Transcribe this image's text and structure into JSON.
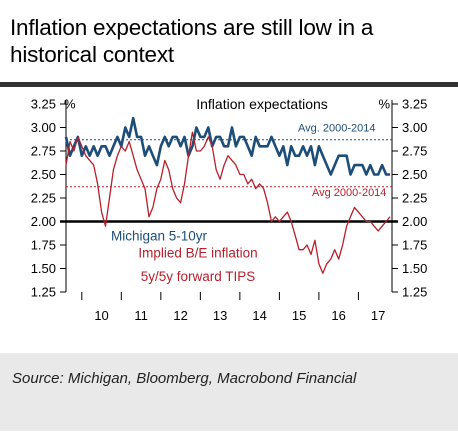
{
  "title": "Inflation expectations are still low in a historical context",
  "source": "Source: Michigan, Bloomberg, Macrobond Financial",
  "chart_data": {
    "type": "line",
    "title": "Inflation expectations",
    "ylabel_left": "%",
    "ylabel_right": "%",
    "ylim": [
      1.25,
      3.25
    ],
    "yticks": [
      "3.25",
      "3.00",
      "2.75",
      "2.50",
      "2.25",
      "2.00",
      "1.75",
      "1.50",
      "1.25"
    ],
    "xlim": [
      2009.6,
      2017.85
    ],
    "x_categories": [
      "10",
      "11",
      "12",
      "13",
      "14",
      "15",
      "16",
      "17"
    ],
    "grid": false,
    "colors": {
      "michigan": "#1d4e79",
      "tips": "#b5202b",
      "avg_michigan": "#1d4e79",
      "avg_tips": "#b5202b",
      "baseline": "#000000"
    },
    "annotations": {
      "avg_michigan": "Avg. 2000-2014",
      "avg_tips": "Avg 2000-2014",
      "michigan_label": "Michigan 5-10yr",
      "tips_label_1": "Implied B/E inflation",
      "tips_label_2": "5y/5y forward TIPS"
    },
    "reference_lines": [
      {
        "name": "Avg. 2000-2014",
        "value": 2.87
      },
      {
        "name": "Avg 2000-2014",
        "value": 2.37
      },
      {
        "name": "baseline",
        "value": 2.0
      }
    ],
    "series": [
      {
        "name": "Michigan 5-10yr",
        "x": [
          2009.6,
          2009.7,
          2009.8,
          2009.9,
          2010.0,
          2010.1,
          2010.2,
          2010.3,
          2010.4,
          2010.5,
          2010.6,
          2010.7,
          2010.8,
          2010.9,
          2011.0,
          2011.1,
          2011.2,
          2011.3,
          2011.4,
          2011.5,
          2011.6,
          2011.7,
          2011.8,
          2011.9,
          2012.0,
          2012.1,
          2012.2,
          2012.3,
          2012.4,
          2012.5,
          2012.6,
          2012.7,
          2012.8,
          2012.9,
          2013.0,
          2013.1,
          2013.2,
          2013.3,
          2013.4,
          2013.5,
          2013.6,
          2013.7,
          2013.8,
          2013.9,
          2014.0,
          2014.1,
          2014.2,
          2014.3,
          2014.4,
          2014.5,
          2014.6,
          2014.7,
          2014.8,
          2014.9,
          2015.0,
          2015.1,
          2015.2,
          2015.3,
          2015.4,
          2015.5,
          2015.6,
          2015.7,
          2015.8,
          2015.9,
          2016.0,
          2016.1,
          2016.2,
          2016.3,
          2016.4,
          2016.5,
          2016.6,
          2016.7,
          2016.8,
          2016.9,
          2017.0,
          2017.1,
          2017.2,
          2017.3,
          2017.4,
          2017.5,
          2017.6,
          2017.7,
          2017.8
        ],
        "values": [
          2.9,
          2.7,
          2.8,
          2.9,
          2.7,
          2.8,
          2.7,
          2.8,
          2.7,
          2.8,
          2.8,
          2.7,
          2.8,
          2.9,
          2.8,
          3.0,
          2.9,
          3.1,
          2.9,
          2.9,
          2.7,
          2.8,
          2.7,
          2.6,
          2.8,
          2.9,
          2.8,
          2.9,
          2.9,
          2.8,
          2.9,
          2.7,
          2.8,
          3.0,
          2.9,
          2.9,
          3.0,
          2.8,
          2.9,
          2.9,
          2.8,
          2.8,
          3.0,
          2.8,
          2.9,
          2.9,
          2.8,
          2.7,
          2.9,
          2.8,
          2.8,
          2.8,
          2.9,
          2.8,
          2.7,
          2.8,
          2.6,
          2.8,
          2.7,
          2.7,
          2.8,
          2.7,
          2.8,
          2.6,
          2.8,
          2.7,
          2.6,
          2.5,
          2.6,
          2.7,
          2.7,
          2.7,
          2.5,
          2.6,
          2.6,
          2.6,
          2.5,
          2.6,
          2.5,
          2.5,
          2.6,
          2.5,
          2.5
        ]
      },
      {
        "name": "Implied B/E inflation 5y/5y forward TIPS",
        "x": [
          2009.6,
          2009.7,
          2009.8,
          2009.9,
          2010.0,
          2010.1,
          2010.2,
          2010.3,
          2010.4,
          2010.5,
          2010.6,
          2010.7,
          2010.8,
          2010.9,
          2011.0,
          2011.1,
          2011.2,
          2011.3,
          2011.4,
          2011.5,
          2011.6,
          2011.7,
          2011.8,
          2011.9,
          2012.0,
          2012.1,
          2012.2,
          2012.3,
          2012.4,
          2012.5,
          2012.6,
          2012.7,
          2012.8,
          2012.9,
          2013.0,
          2013.1,
          2013.2,
          2013.3,
          2013.4,
          2013.5,
          2013.6,
          2013.7,
          2013.8,
          2013.9,
          2014.0,
          2014.1,
          2014.2,
          2014.3,
          2014.4,
          2014.5,
          2014.6,
          2014.7,
          2014.8,
          2014.9,
          2015.0,
          2015.1,
          2015.2,
          2015.3,
          2015.4,
          2015.5,
          2015.6,
          2015.7,
          2015.8,
          2015.9,
          2016.0,
          2016.1,
          2016.2,
          2016.3,
          2016.4,
          2016.5,
          2016.6,
          2016.7,
          2016.8,
          2016.9,
          2017.0,
          2017.1,
          2017.2,
          2017.3,
          2017.4,
          2017.5,
          2017.6,
          2017.7,
          2017.8
        ],
        "values": [
          2.6,
          2.85,
          2.75,
          2.9,
          2.8,
          2.7,
          2.65,
          2.6,
          2.4,
          2.1,
          1.95,
          2.25,
          2.55,
          2.7,
          2.8,
          2.75,
          2.85,
          2.7,
          2.55,
          2.45,
          2.35,
          2.05,
          2.15,
          2.35,
          2.45,
          2.65,
          2.55,
          2.35,
          2.25,
          2.2,
          2.4,
          2.7,
          2.95,
          2.75,
          2.75,
          2.8,
          2.9,
          2.8,
          2.55,
          2.45,
          2.6,
          2.7,
          2.65,
          2.6,
          2.5,
          2.5,
          2.4,
          2.45,
          2.35,
          2.4,
          2.35,
          2.2,
          2.0,
          2.05,
          2.0,
          2.05,
          2.1,
          2.0,
          1.85,
          1.7,
          1.7,
          1.75,
          1.65,
          1.8,
          1.55,
          1.45,
          1.55,
          1.6,
          1.7,
          1.6,
          1.75,
          1.95,
          2.05,
          2.15,
          2.1,
          2.05,
          2.0,
          2.0,
          1.95,
          1.9,
          1.95,
          2.0,
          2.05
        ]
      }
    ]
  }
}
